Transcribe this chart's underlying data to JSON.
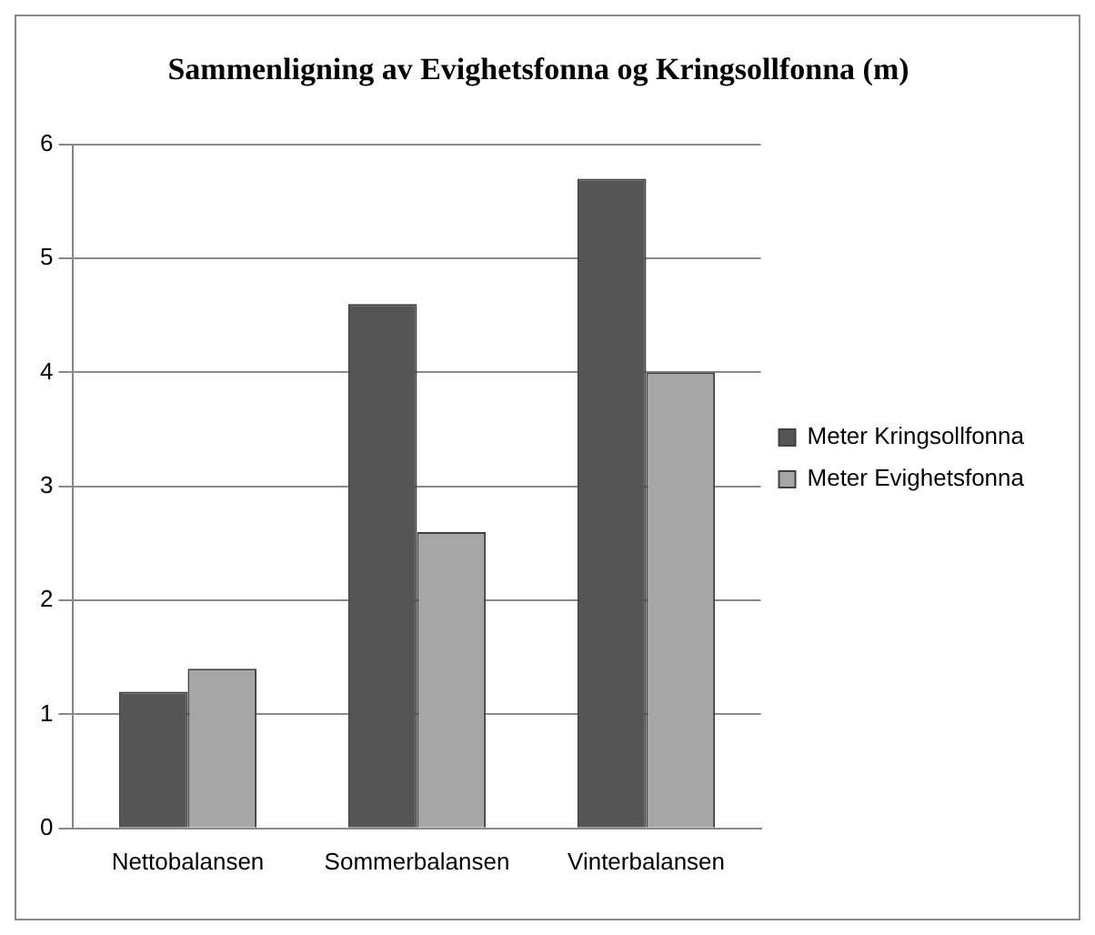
{
  "chart_data": {
    "type": "bar",
    "title": "Sammenligning av Evighetsfonna og Kringsollfonna (m)",
    "categories": [
      "Nettobalansen",
      "Sommerbalansen",
      "Vinterbalansen"
    ],
    "series": [
      {
        "name": "Meter Kringsollfonna",
        "color": "#555555",
        "values": [
          1.2,
          4.6,
          5.7
        ]
      },
      {
        "name": "Meter Evighetsfonna",
        "color": "#a6a6a6",
        "values": [
          1.4,
          2.6,
          4.0
        ]
      }
    ],
    "ylim": [
      0,
      6
    ],
    "yticks": [
      0,
      1,
      2,
      3,
      4,
      5,
      6
    ],
    "grid": "y",
    "legend": "right"
  }
}
